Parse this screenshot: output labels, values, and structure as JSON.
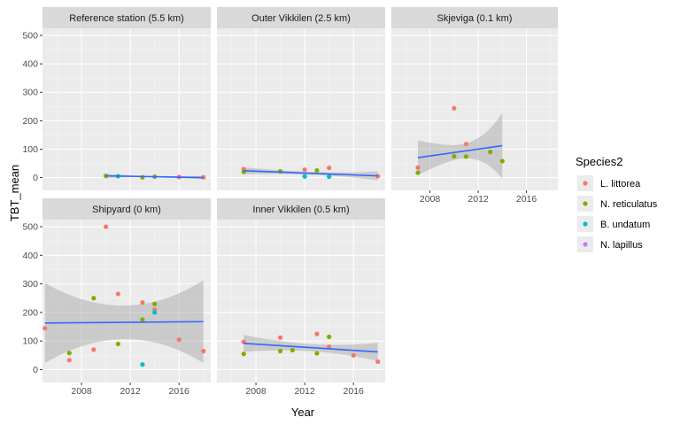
{
  "chart_data": {
    "type": "scatter",
    "xlabel": "Year",
    "ylabel": "TBT_mean",
    "xlim": [
      2004.8,
      2018.6
    ],
    "ylim": [
      -45,
      525
    ],
    "x_ticks": [
      2008,
      2012,
      2016
    ],
    "x_tick_labels": [
      "2008",
      "2012",
      "2016"
    ],
    "y_ticks": [
      0,
      100,
      200,
      300,
      400,
      500
    ],
    "y_tick_labels": [
      "0",
      "100",
      "200",
      "300",
      "400",
      "500"
    ],
    "legend": {
      "title": "Species2",
      "placement": "right",
      "items": [
        {
          "label": "L. littorea",
          "color": "#F8766D"
        },
        {
          "label": "N. reticulatus",
          "color": "#7CAE00"
        },
        {
          "label": "B. undatum",
          "color": "#00BFC4"
        },
        {
          "label": "N. lapillus",
          "color": "#C77CFF"
        }
      ]
    },
    "trend_color": "#3366FF",
    "panels": [
      {
        "title": "Reference station (5.5 km)",
        "points": [
          {
            "x": 2010,
            "y": 6,
            "species": 1
          },
          {
            "x": 2011,
            "y": 5,
            "species": 2
          },
          {
            "x": 2013,
            "y": 1,
            "species": 1
          },
          {
            "x": 2014,
            "y": 3,
            "species": 1
          },
          {
            "x": 2016,
            "y": 2,
            "species": 0
          },
          {
            "x": 2018,
            "y": 1,
            "species": 0
          }
        ],
        "trend": {
          "x": [
            2010,
            2018
          ],
          "y": [
            6,
            0
          ],
          "lower": [
            -2,
            -6
          ],
          "upper": [
            14,
            6
          ]
        }
      },
      {
        "title": "Outer Vikkilen (2.5 km)",
        "points": [
          {
            "x": 2007,
            "y": 30,
            "species": 0
          },
          {
            "x": 2007,
            "y": 20,
            "species": 1
          },
          {
            "x": 2010,
            "y": 22,
            "species": 1
          },
          {
            "x": 2012,
            "y": 28,
            "species": 0
          },
          {
            "x": 2012,
            "y": 4,
            "species": 2
          },
          {
            "x": 2013,
            "y": 25,
            "species": 1
          },
          {
            "x": 2014,
            "y": 34,
            "species": 0
          },
          {
            "x": 2014,
            "y": 3,
            "species": 2
          },
          {
            "x": 2018,
            "y": 5,
            "species": 0
          }
        ],
        "trend": {
          "x": [
            2007,
            2018
          ],
          "y": [
            24,
            6
          ],
          "lower": [
            12,
            -10
          ],
          "upper": [
            36,
            22
          ]
        }
      },
      {
        "title": "Skjeviga (0.1 km)",
        "points": [
          {
            "x": 2007,
            "y": 35,
            "species": 0
          },
          {
            "x": 2007,
            "y": 17,
            "species": 1
          },
          {
            "x": 2010,
            "y": 244,
            "species": 0
          },
          {
            "x": 2010,
            "y": 75,
            "species": 1
          },
          {
            "x": 2011,
            "y": 118,
            "species": 0
          },
          {
            "x": 2011,
            "y": 74,
            "species": 1
          },
          {
            "x": 2013,
            "y": 90,
            "species": 1
          },
          {
            "x": 2014,
            "y": 58,
            "species": 1
          }
        ],
        "trend": {
          "x": [
            2007,
            2014
          ],
          "y": [
            70,
            112
          ],
          "lower": [
            10,
            -5
          ],
          "upper": [
            130,
            227
          ]
        }
      },
      {
        "title": "Shipyard (0 km)",
        "points": [
          {
            "x": 2005,
            "y": 145,
            "species": 0
          },
          {
            "x": 2007,
            "y": 33,
            "species": 0
          },
          {
            "x": 2007,
            "y": 58,
            "species": 1
          },
          {
            "x": 2009,
            "y": 70,
            "species": 0
          },
          {
            "x": 2009,
            "y": 250,
            "species": 1
          },
          {
            "x": 2010,
            "y": 500,
            "species": 0
          },
          {
            "x": 2011,
            "y": 265,
            "species": 0
          },
          {
            "x": 2011,
            "y": 90,
            "species": 1
          },
          {
            "x": 2013,
            "y": 235,
            "species": 0
          },
          {
            "x": 2013,
            "y": 175,
            "species": 1
          },
          {
            "x": 2013,
            "y": 18,
            "species": 2
          },
          {
            "x": 2014,
            "y": 230,
            "species": 1
          },
          {
            "x": 2014,
            "y": 210,
            "species": 0
          },
          {
            "x": 2014,
            "y": 200,
            "species": 2
          },
          {
            "x": 2016,
            "y": 105,
            "species": 0
          },
          {
            "x": 2018,
            "y": 65,
            "species": 0
          }
        ],
        "trend": {
          "x": [
            2005,
            2018
          ],
          "y": [
            163,
            168
          ],
          "lower": [
            25,
            25
          ],
          "upper": [
            305,
            315
          ]
        }
      },
      {
        "title": "Inner Vikkilen (0.5 km)",
        "points": [
          {
            "x": 2007,
            "y": 97,
            "species": 0
          },
          {
            "x": 2007,
            "y": 55,
            "species": 1
          },
          {
            "x": 2010,
            "y": 112,
            "species": 0
          },
          {
            "x": 2010,
            "y": 65,
            "species": 1
          },
          {
            "x": 2011,
            "y": 68,
            "species": 1
          },
          {
            "x": 2013,
            "y": 125,
            "species": 0
          },
          {
            "x": 2013,
            "y": 57,
            "species": 1
          },
          {
            "x": 2014,
            "y": 115,
            "species": 1
          },
          {
            "x": 2014,
            "y": 80,
            "species": 0
          },
          {
            "x": 2016,
            "y": 50,
            "species": 0
          },
          {
            "x": 2018,
            "y": 28,
            "species": 0
          }
        ],
        "trend": {
          "x": [
            2007,
            2018
          ],
          "y": [
            92,
            62
          ],
          "lower": [
            62,
            30
          ],
          "upper": [
            122,
            94
          ]
        }
      }
    ]
  }
}
